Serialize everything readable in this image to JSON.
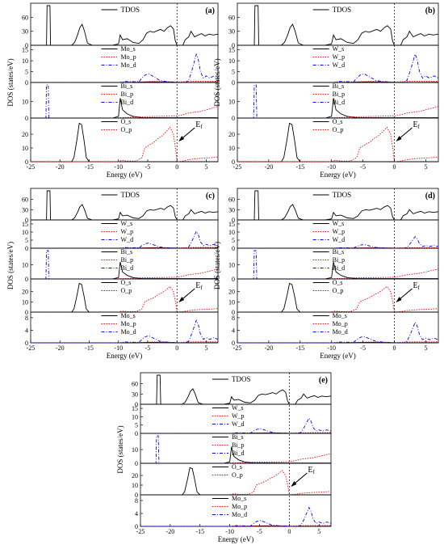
{
  "colors": {
    "s": "#000000",
    "p": "#ff0000",
    "d": "#0000ff",
    "fermi": "#000000"
  },
  "chart_data": [
    {
      "type": "line",
      "panel_label": "(a)",
      "xlabel": "Energy (eV)",
      "ylabel": "DOS (states/eV)",
      "xlim": [
        -25,
        7
      ],
      "xticks": [
        "-25",
        "-20",
        "-15",
        "-10",
        "-5",
        "0",
        "5"
      ],
      "fermi_level": 0,
      "fermi_label": "Ef",
      "subplots": [
        {
          "ylim": [
            0,
            85
          ],
          "yticks": [
            "0",
            "30",
            "60"
          ],
          "legend": [
            "TDOS"
          ],
          "kind": "tdos"
        },
        {
          "ylim": [
            0,
            16
          ],
          "yticks": [
            "0",
            "5",
            "10",
            "15"
          ],
          "legend": [
            "Mo_s",
            "Mo_p",
            "Mo_d"
          ],
          "kind": "Mo",
          "scale": 1.0
        },
        {
          "ylim": [
            0,
            20
          ],
          "yticks": [
            "0",
            "10"
          ],
          "legend": [
            "Bi_s",
            "Bi_p",
            "Bi_d"
          ],
          "kind": "Bi"
        },
        {
          "ylim": [
            0,
            30
          ],
          "yticks": [
            "0",
            "10",
            "20"
          ],
          "legend": [
            "O_s",
            "O_p"
          ],
          "kind": "O"
        }
      ]
    },
    {
      "type": "line",
      "panel_label": "(b)",
      "xlabel": "Energy (eV)",
      "ylabel": "DOS (states/eV)",
      "xlim": [
        -25,
        7
      ],
      "xticks": [
        "-25",
        "-20",
        "-15",
        "-10",
        "-5",
        "0",
        "5"
      ],
      "fermi_level": 0,
      "fermi_label": "Ef",
      "subplots": [
        {
          "ylim": [
            0,
            85
          ],
          "yticks": [
            "0",
            "30",
            "60"
          ],
          "legend": [
            "TDOS"
          ],
          "kind": "tdos"
        },
        {
          "ylim": [
            0,
            16
          ],
          "yticks": [
            "0",
            "5",
            "10",
            "15"
          ],
          "legend": [
            "W_s",
            "W_p",
            "W_d"
          ],
          "kind": "W",
          "scale": 1.0
        },
        {
          "ylim": [
            0,
            20
          ],
          "yticks": [
            "0",
            "10"
          ],
          "legend": [
            "Bi_s",
            "Bi_p",
            "Bi_d"
          ],
          "kind": "Bi"
        },
        {
          "ylim": [
            0,
            30
          ],
          "yticks": [
            "0",
            "10",
            "20"
          ],
          "legend": [
            "O_s",
            "O_p"
          ],
          "kind": "O"
        }
      ]
    },
    {
      "type": "line",
      "panel_label": "(c)",
      "xlabel": "Energy (eV)",
      "ylabel": "DOS (states/eV)",
      "xlim": [
        -25,
        7
      ],
      "xticks": [
        "-25",
        "-20",
        "-15",
        "-10",
        "-5",
        "0",
        "5"
      ],
      "fermi_level": 0,
      "fermi_label": "Ef",
      "subplots": [
        {
          "ylim": [
            0,
            85
          ],
          "yticks": [
            "0",
            "30",
            "60"
          ],
          "legend": [
            "TDOS"
          ],
          "kind": "tdos"
        },
        {
          "ylim": [
            0,
            16
          ],
          "yticks": [
            "0",
            "5",
            "10",
            "15"
          ],
          "legend": [
            "W_s",
            "W_p",
            "W_d"
          ],
          "kind": "W",
          "scale": 0.8
        },
        {
          "ylim": [
            0,
            20
          ],
          "yticks": [
            "0",
            "10"
          ],
          "legend": [
            "Bi_s",
            "Bi_p",
            "Bi_d"
          ],
          "kind": "Bi"
        },
        {
          "ylim": [
            0,
            30
          ],
          "yticks": [
            "0",
            "10",
            "20"
          ],
          "legend": [
            "O_s",
            "O_p"
          ],
          "kind": "O"
        },
        {
          "ylim": [
            0,
            9
          ],
          "yticks": [
            "0",
            "4",
            "8"
          ],
          "legend": [
            "Mo_s",
            "Mo_p",
            "Mo_d"
          ],
          "kind": "Mo",
          "scale": 0.55
        }
      ]
    },
    {
      "type": "line",
      "panel_label": "(d)",
      "xlabel": "Energy (eV)",
      "ylabel": "DOS (states/eV)",
      "xlim": [
        -25,
        7
      ],
      "xticks": [
        "-25",
        "-20",
        "-15",
        "-10",
        "-5",
        "0",
        "5"
      ],
      "fermi_level": 0,
      "fermi_label": "Ef",
      "subplots": [
        {
          "ylim": [
            0,
            85
          ],
          "yticks": [
            "0",
            "30",
            "60"
          ],
          "legend": [
            "TDOS"
          ],
          "kind": "tdos"
        },
        {
          "ylim": [
            0,
            16
          ],
          "yticks": [
            "0",
            "5",
            "10",
            "15"
          ],
          "legend": [
            "W_s",
            "W_p",
            "W_d"
          ],
          "kind": "W",
          "scale": 0.55
        },
        {
          "ylim": [
            0,
            20
          ],
          "yticks": [
            "0",
            "10"
          ],
          "legend": [
            "Bi_s",
            "Bi_p",
            "Bi_d"
          ],
          "kind": "Bi"
        },
        {
          "ylim": [
            0,
            30
          ],
          "yticks": [
            "0",
            "10",
            "20"
          ],
          "legend": [
            "O_s",
            "O_p"
          ],
          "kind": "O"
        },
        {
          "ylim": [
            0,
            9
          ],
          "yticks": [
            "0",
            "4",
            "8"
          ],
          "legend": [
            "Mo_s",
            "Mo_p",
            "Mo_d"
          ],
          "kind": "Mo",
          "scale": 0.5
        }
      ]
    },
    {
      "type": "line",
      "panel_label": "(e)",
      "xlabel": "Energy (eV)",
      "ylabel": "DOS (states/eV)",
      "xlim": [
        -25,
        7
      ],
      "xticks": [
        "-25",
        "-20",
        "-15",
        "-10",
        "-5",
        "0",
        "5"
      ],
      "fermi_level": 0,
      "fermi_label": "Ef",
      "subplots": [
        {
          "ylim": [
            0,
            85
          ],
          "yticks": [
            "0",
            "30",
            "60"
          ],
          "legend": [
            "TDOS"
          ],
          "kind": "tdos"
        },
        {
          "ylim": [
            0,
            16
          ],
          "yticks": [
            "0",
            "5",
            "10",
            "15"
          ],
          "legend": [
            "W_s",
            "W_p",
            "W_d"
          ],
          "kind": "W",
          "scale": 0.7
        },
        {
          "ylim": [
            0,
            20
          ],
          "yticks": [
            "0",
            "10"
          ],
          "legend": [
            "Bi_s",
            "Bi_p",
            "Bi_d"
          ],
          "kind": "Bi"
        },
        {
          "ylim": [
            0,
            30
          ],
          "yticks": [
            "0",
            "10",
            "20"
          ],
          "legend": [
            "O_s",
            "O_p"
          ],
          "kind": "O"
        },
        {
          "ylim": [
            0,
            9
          ],
          "yticks": [
            "0",
            "4",
            "8"
          ],
          "legend": [
            "Mo_s",
            "Mo_p",
            "Mo_d"
          ],
          "kind": "Mo",
          "scale": 0.45
        }
      ]
    }
  ],
  "curve_shapes": {
    "tdos": [
      [
        -25,
        0
      ],
      [
        -22.3,
        0
      ],
      [
        -22.2,
        85
      ],
      [
        -21.7,
        85
      ],
      [
        -21.6,
        0
      ],
      [
        -18,
        0
      ],
      [
        -17.5,
        6
      ],
      [
        -17,
        22
      ],
      [
        -16.6,
        38
      ],
      [
        -16.2,
        45
      ],
      [
        -15.8,
        30
      ],
      [
        -15.3,
        5
      ],
      [
        -14.5,
        0
      ],
      [
        -11,
        0
      ],
      [
        -10,
        3
      ],
      [
        -9.7,
        22
      ],
      [
        -9.3,
        12
      ],
      [
        -8.5,
        14
      ],
      [
        -7.5,
        6
      ],
      [
        -6.5,
        4
      ],
      [
        -5.8,
        12
      ],
      [
        -5.2,
        26
      ],
      [
        -4.6,
        30
      ],
      [
        -4,
        28
      ],
      [
        -3.4,
        31
      ],
      [
        -2.8,
        34
      ],
      [
        -2.2,
        30
      ],
      [
        -1.6,
        38
      ],
      [
        -1.1,
        42
      ],
      [
        -0.6,
        35
      ],
      [
        -0.3,
        10
      ],
      [
        0,
        0
      ],
      [
        1,
        0
      ],
      [
        1.4,
        12
      ],
      [
        2,
        18
      ],
      [
        2.4,
        30
      ],
      [
        3,
        18
      ],
      [
        3.6,
        22
      ],
      [
        4.2,
        25
      ],
      [
        4.8,
        20
      ],
      [
        5.5,
        24
      ],
      [
        6.2,
        22
      ],
      [
        7,
        24
      ]
    ],
    "d": [
      [
        -25,
        0
      ],
      [
        -9.5,
        0
      ],
      [
        -9,
        0.5
      ],
      [
        -6.5,
        0.3
      ],
      [
        -6,
        2
      ],
      [
        -5.4,
        3.5
      ],
      [
        -4.8,
        4
      ],
      [
        -4.2,
        3
      ],
      [
        -3.6,
        2
      ],
      [
        -3,
        1
      ],
      [
        -2,
        0.5
      ],
      [
        -0.5,
        0.2
      ],
      [
        0,
        0
      ],
      [
        1.5,
        0
      ],
      [
        2,
        1
      ],
      [
        2.6,
        6
      ],
      [
        3,
        10
      ],
      [
        3.3,
        13
      ],
      [
        3.6,
        11
      ],
      [
        4,
        5
      ],
      [
        4.5,
        2
      ],
      [
        5,
        3
      ],
      [
        5.6,
        2
      ],
      [
        6.3,
        3
      ],
      [
        7,
        2
      ]
    ],
    "p": [
      [
        -25,
        0
      ],
      [
        -10,
        0
      ],
      [
        -9.5,
        0.2
      ],
      [
        -6,
        0.3
      ],
      [
        -4,
        0.5
      ],
      [
        -2,
        0.4
      ],
      [
        0,
        0.2
      ],
      [
        2,
        0.5
      ],
      [
        4,
        0.6
      ],
      [
        7,
        0.6
      ]
    ],
    "s": [
      [
        -25,
        0
      ],
      [
        -7,
        0
      ],
      [
        -6,
        0.2
      ],
      [
        -4,
        0.3
      ],
      [
        -2,
        0.2
      ],
      [
        0,
        0
      ],
      [
        7,
        0.1
      ]
    ],
    "Bi_s": [
      [
        -25,
        0
      ],
      [
        -11,
        0
      ],
      [
        -10,
        1
      ],
      [
        -9.7,
        12
      ],
      [
        -9.3,
        5
      ],
      [
        -8.5,
        2.5
      ],
      [
        -7.5,
        1
      ],
      [
        -6,
        0.3
      ],
      [
        0,
        0.2
      ],
      [
        7,
        0.2
      ]
    ],
    "Bi_p": [
      [
        -25,
        0
      ],
      [
        -11,
        0
      ],
      [
        -9,
        0.3
      ],
      [
        -6,
        0.8
      ],
      [
        -3,
        1
      ],
      [
        0,
        1.2
      ],
      [
        1,
        2
      ],
      [
        2,
        3
      ],
      [
        3,
        3.5
      ],
      [
        4,
        4
      ],
      [
        5,
        5
      ],
      [
        6,
        6
      ],
      [
        7,
        7
      ]
    ],
    "Bi_d": [
      [
        -25,
        0
      ],
      [
        -22.4,
        0
      ],
      [
        -22.3,
        22
      ],
      [
        -22,
        22
      ],
      [
        -21.9,
        0
      ],
      [
        -7,
        0
      ],
      [
        7,
        0
      ]
    ],
    "O_s": [
      [
        -25,
        0
      ],
      [
        -18,
        0
      ],
      [
        -17.6,
        3
      ],
      [
        -17.1,
        16
      ],
      [
        -16.7,
        28
      ],
      [
        -16.3,
        27
      ],
      [
        -15.9,
        16
      ],
      [
        -15.5,
        3
      ],
      [
        -15,
        0
      ],
      [
        7,
        0
      ]
    ],
    "O_p": [
      [
        -25,
        0
      ],
      [
        -10,
        0
      ],
      [
        -9.5,
        1
      ],
      [
        -8.5,
        0.5
      ],
      [
        -7,
        0.5
      ],
      [
        -6,
        3
      ],
      [
        -5.5,
        10
      ],
      [
        -4.8,
        12
      ],
      [
        -4,
        14
      ],
      [
        -3.2,
        17
      ],
      [
        -2.5,
        19
      ],
      [
        -1.8,
        22
      ],
      [
        -1.2,
        25
      ],
      [
        -0.6,
        20
      ],
      [
        -0.2,
        8
      ],
      [
        0,
        0
      ],
      [
        1,
        0.5
      ],
      [
        2,
        1.5
      ],
      [
        4,
        2.5
      ],
      [
        6,
        3
      ],
      [
        7,
        3.5
      ]
    ]
  }
}
